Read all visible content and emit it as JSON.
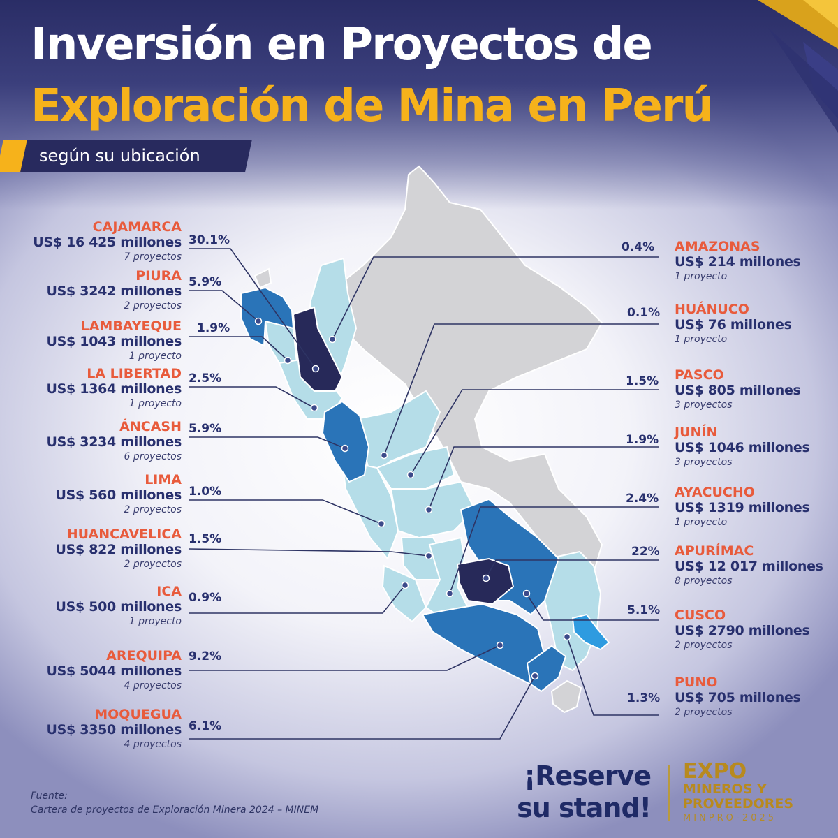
{
  "title": {
    "line1": "Inversión en Proyectos de",
    "line2": "Exploración de Mina en Perú",
    "subtitle": "según su ubicación"
  },
  "colors": {
    "title_white": "#ffffff",
    "title_gold": "#f6b21b",
    "navy": "#28306e",
    "region_name": "#e85b3c",
    "map_gray": "#d3d3d6",
    "map_light": "#b5dde8",
    "map_mid": "#2a74b8",
    "map_dark": "#272959",
    "map_bright": "#2e9be0"
  },
  "regions_left": [
    {
      "name": "CAJAMARCA",
      "amount": "US$ 16 425 millones",
      "projects": "7 proyectos",
      "share": "30.1%",
      "share_value": 30.1
    },
    {
      "name": "PIURA",
      "amount": "US$ 3242 millones",
      "projects": "2 proyectos",
      "share": "5.9%",
      "share_value": 5.9
    },
    {
      "name": "LAMBAYEQUE",
      "amount": "US$ 1043 millones",
      "projects": "1 proyecto",
      "share": "1.9%",
      "share_value": 1.9
    },
    {
      "name": "LA LIBERTAD",
      "amount": "US$ 1364 millones",
      "projects": "1 proyecto",
      "share": "2.5%",
      "share_value": 2.5
    },
    {
      "name": "ÁNCASH",
      "amount": "US$ 3234 millones",
      "projects": "6 proyectos",
      "share": "5.9%",
      "share_value": 5.9
    },
    {
      "name": "LIMA",
      "amount": "US$ 560 millones",
      "projects": "2 proyectos",
      "share": "1.0%",
      "share_value": 1.0
    },
    {
      "name": "HUANCAVELICA",
      "amount": "US$ 822 millones",
      "projects": "2 proyectos",
      "share": "1.5%",
      "share_value": 1.5
    },
    {
      "name": "ICA",
      "amount": "US$ 500 millones",
      "projects": "1 proyecto",
      "share": "0.9%",
      "share_value": 0.9
    },
    {
      "name": "AREQUIPA",
      "amount": "US$ 5044 millones",
      "projects": "4 proyectos",
      "share": "9.2%",
      "share_value": 9.2
    },
    {
      "name": "MOQUEGUA",
      "amount": "US$ 3350 millones",
      "projects": "4 proyectos",
      "share": "6.1%",
      "share_value": 6.1
    }
  ],
  "regions_right": [
    {
      "name": "AMAZONAS",
      "amount": "US$ 214 millones",
      "projects": "1 proyecto",
      "share": "0.4%",
      "share_value": 0.4
    },
    {
      "name": "HUÁNUCO",
      "amount": "US$ 76 millones",
      "projects": "1 proyecto",
      "share": "0.1%",
      "share_value": 0.1
    },
    {
      "name": "PASCO",
      "amount": "US$ 805 millones",
      "projects": "3 proyectos",
      "share": "1.5%",
      "share_value": 1.5
    },
    {
      "name": "JUNÍN",
      "amount": "US$ 1046 millones",
      "projects": "3 proyectos",
      "share": "1.9%",
      "share_value": 1.9
    },
    {
      "name": "AYACUCHO",
      "amount": "US$ 1319 millones",
      "projects": "1 proyecto",
      "share": "2.4%",
      "share_value": 2.4
    },
    {
      "name": "APURÍMAC",
      "amount": "US$ 12 017 millones",
      "projects": "8 proyectos",
      "share": "22%",
      "share_value": 22
    },
    {
      "name": "CUSCO",
      "amount": "US$ 2790 millones",
      "projects": "2 proyectos",
      "share": "5.1%",
      "share_value": 5.1
    },
    {
      "name": "PUNO",
      "amount": "US$ 705 millones",
      "projects": "2 proyectos",
      "share": "1.3%",
      "share_value": 1.3
    }
  ],
  "source": {
    "label": "Fuente:",
    "text": "Cartera de proyectos de Exploración Minera 2024 – MINEM"
  },
  "cta": {
    "line1": "¡Reserve",
    "line2": "su stand!"
  },
  "logo": {
    "line1": "EXPO",
    "line2": "MINEROS Y",
    "line3": "PROVEEDORES",
    "line4": "MINPRO-2025"
  }
}
